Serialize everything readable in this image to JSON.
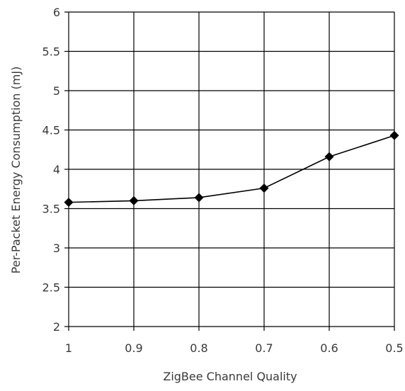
{
  "chart_data": {
    "type": "line",
    "title": "",
    "xlabel": "ZigBee Channel Quality",
    "ylabel": "Per-Packet Energy Consumption (mJ)",
    "categories": [
      "1",
      "0.9",
      "0.8",
      "0.7",
      "0.6",
      "0.5"
    ],
    "series": [
      {
        "values": [
          3.58,
          3.6,
          3.64,
          3.76,
          4.16,
          4.43
        ],
        "color": "#000000",
        "marker": "diamond"
      }
    ],
    "ylim": [
      2,
      6
    ],
    "yticks": [
      "2",
      "2.5",
      "3",
      "3.5",
      "4",
      "4.5",
      "5",
      "5.5",
      "6"
    ],
    "grid": true,
    "legend": "none"
  }
}
